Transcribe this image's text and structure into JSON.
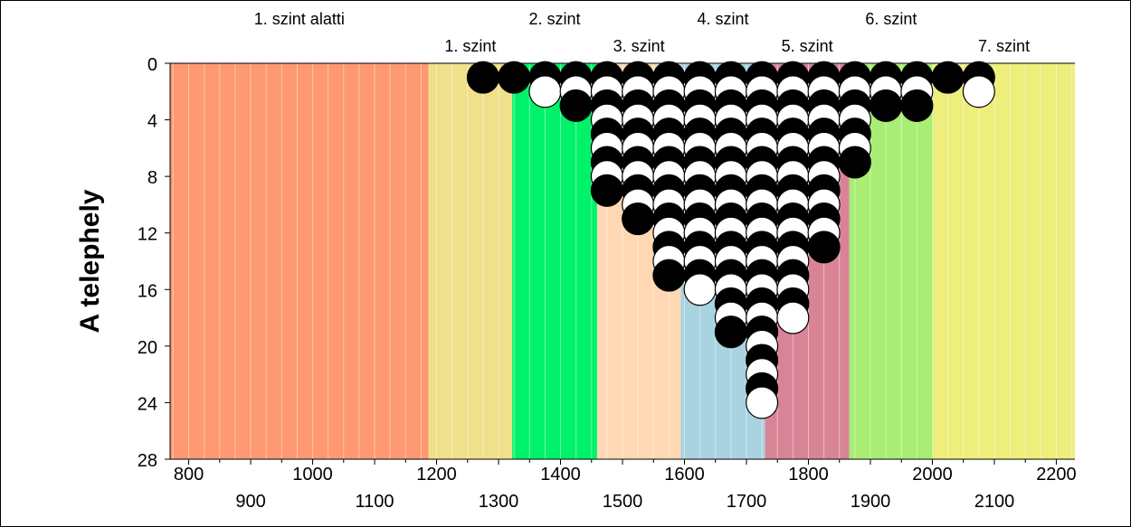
{
  "chart_data": {
    "type": "scatter",
    "title": "",
    "xlabel": "",
    "ylabel": "A telephely",
    "xlim": [
      770,
      2230
    ],
    "ylim": [
      0,
      28
    ],
    "y_inverted": true,
    "grid": true,
    "x_ticks_row1": [
      "800",
      "1000",
      "1200",
      "1400",
      "1600",
      "1800",
      "2000",
      "2200"
    ],
    "x_ticks_row2": [
      "900",
      "1100",
      "1300",
      "1500",
      "1700",
      "1900",
      "2100"
    ],
    "y_ticks": [
      "0",
      "4",
      "8",
      "12",
      "16",
      "20",
      "24",
      "28"
    ],
    "bands": [
      {
        "label": "1. szint alatti",
        "from": 770,
        "to": 1187,
        "color": "#FD9870",
        "label_row": "top"
      },
      {
        "label": "1. szint",
        "from": 1187,
        "to": 1322,
        "color": "#EFE08A",
        "label_row": "bottom"
      },
      {
        "label": "2. szint",
        "from": 1322,
        "to": 1459,
        "color": "#00F26A",
        "label_row": "top"
      },
      {
        "label": "3. szint",
        "from": 1459,
        "to": 1594,
        "color": "#FFD8B3",
        "label_row": "bottom"
      },
      {
        "label": "4. szint",
        "from": 1594,
        "to": 1730,
        "color": "#A9D3E1",
        "label_row": "top"
      },
      {
        "label": "5. szint",
        "from": 1730,
        "to": 1866,
        "color": "#D98496",
        "label_row": "bottom"
      },
      {
        "label": "6. szint",
        "from": 1866,
        "to": 2001,
        "color": "#A8EE74",
        "label_row": "top"
      },
      {
        "label": "7. szint",
        "from": 2001,
        "to": 2230,
        "color": "#EDEE7C",
        "label_row": "bottom"
      }
    ],
    "series": [
      {
        "x": 1275,
        "pattern": "B"
      },
      {
        "x": 1325,
        "pattern": "B"
      },
      {
        "x": 1375,
        "pattern": "BW"
      },
      {
        "x": 1425,
        "pattern": "BWB"
      },
      {
        "x": 1475,
        "pattern": "BWBWBWBWB"
      },
      {
        "x": 1525,
        "pattern": "BWBWBWBWBWB"
      },
      {
        "x": 1575,
        "pattern": "BWBWBWBWBWBWBWB"
      },
      {
        "x": 1625,
        "pattern": "BWBWBWBWBWBWBWBW"
      },
      {
        "x": 1675,
        "pattern": "BWBWBWBWBWBWBWBWBWB"
      },
      {
        "x": 1725,
        "pattern": "BWBWBWBWBWBWBWBWBWBWBWBW"
      },
      {
        "x": 1775,
        "pattern": "BWBWBWBWBWBWBWBWBW"
      },
      {
        "x": 1825,
        "pattern": "BWBWBWBWBWBWB"
      },
      {
        "x": 1875,
        "pattern": "BWBWBWB"
      },
      {
        "x": 1925,
        "pattern": "BWB"
      },
      {
        "x": 1975,
        "pattern": "BWB"
      },
      {
        "x": 2025,
        "pattern": "B"
      },
      {
        "x": 2075,
        "pattern": "BW"
      }
    ]
  }
}
